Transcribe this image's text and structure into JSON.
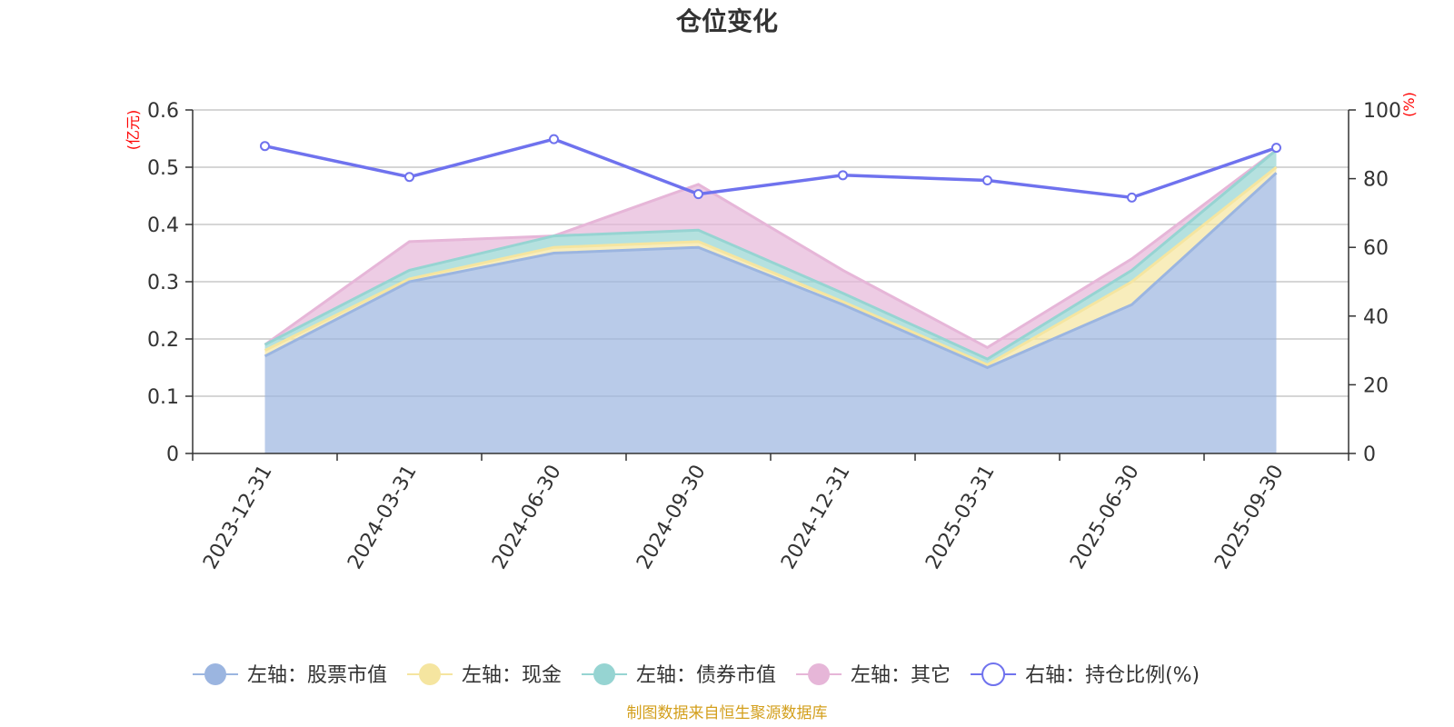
{
  "colors": {
    "stock": "#9bb5e0",
    "cash": "#f5e5a0",
    "bond": "#96d4d2",
    "other": "#e6b6d8",
    "ratio": "#6f72ee",
    "unit": "#ff0000",
    "source": "#d39f1c",
    "text": "#333333"
  },
  "chart_data": {
    "type": "area",
    "title": "仓位变化",
    "x": [
      "2023-12-31",
      "2024-03-31",
      "2024-06-30",
      "2024-09-30",
      "2024-12-31",
      "2025-03-31",
      "2025-06-30",
      "2025-09-30"
    ],
    "left_axis": {
      "unit": "(亿元)",
      "ylim": [
        0,
        0.6
      ],
      "ticks": [
        "0",
        "0.1",
        "0.2",
        "0.3",
        "0.4",
        "0.5",
        "0.6"
      ]
    },
    "right_axis": {
      "unit": "(%)",
      "ylim": [
        0,
        100
      ],
      "ticks": [
        "0",
        "20",
        "40",
        "60",
        "80",
        "100"
      ]
    },
    "stacked": true,
    "series": [
      {
        "name": "左轴：股票市值",
        "axis": "left",
        "color_key": "stock",
        "values": [
          0.17,
          0.3,
          0.35,
          0.36,
          0.26,
          0.15,
          0.26,
          0.49
        ]
      },
      {
        "name": "左轴：现金",
        "axis": "left",
        "color_key": "cash",
        "values": [
          0.01,
          0.005,
          0.01,
          0.01,
          0.005,
          0.005,
          0.04,
          0.01
        ]
      },
      {
        "name": "左轴：债券市值",
        "axis": "left",
        "color_key": "bond",
        "values": [
          0.01,
          0.015,
          0.02,
          0.02,
          0.015,
          0.01,
          0.02,
          0.03
        ]
      },
      {
        "name": "左轴：其它",
        "axis": "left",
        "color_key": "other",
        "values": [
          0.0,
          0.05,
          0.0,
          0.08,
          0.04,
          0.02,
          0.02,
          0.0
        ]
      },
      {
        "name": "右轴：持仓比例(%)",
        "axis": "right",
        "color_key": "ratio",
        "type": "line",
        "values": [
          89.5,
          80.5,
          91.5,
          75.5,
          81,
          79.5,
          74.5,
          89
        ]
      }
    ],
    "grid": true,
    "legend_position": "bottom-center",
    "source": "制图数据来自恒生聚源数据库"
  }
}
